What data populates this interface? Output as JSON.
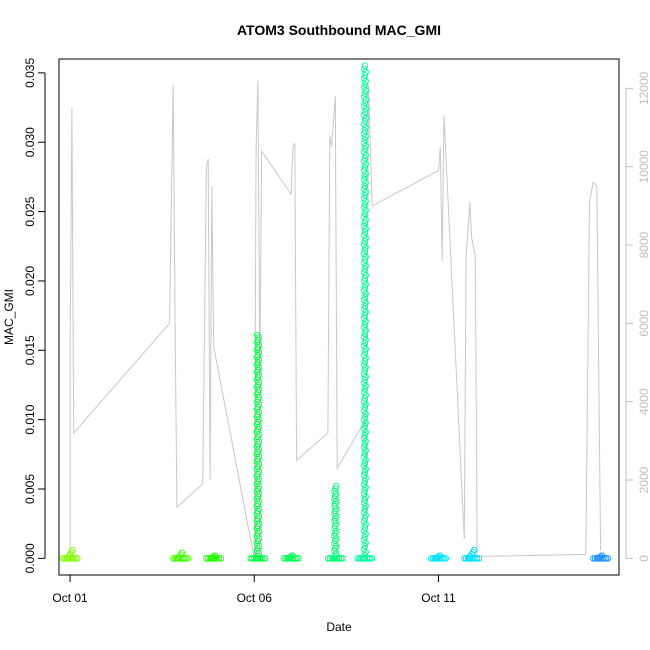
{
  "chart_data": {
    "type": "scatter",
    "title": "ATOM3 Southbound MAC_GMI",
    "xlabel": "Date",
    "ylabel": "MAC_GMI",
    "x_ticks": [
      "Oct 01",
      "Oct 06",
      "Oct 11"
    ],
    "x_tick_days": [
      1,
      6,
      11
    ],
    "xlim": [
      0.7,
      15.9
    ],
    "ylim": [
      -0.0012,
      0.036
    ],
    "y_ticks": [
      0.0,
      0.005,
      0.01,
      0.015,
      0.02,
      0.025,
      0.03,
      0.035
    ],
    "y_tick_labels": [
      "0.000",
      "0.005",
      "0.010",
      "0.015",
      "0.020",
      "0.025",
      "0.030",
      "0.035"
    ],
    "y2_ticks": [
      0,
      2000,
      4000,
      6000,
      8000,
      10000,
      12000
    ],
    "y2_lim": [
      -425,
      12750
    ],
    "points_series": [
      {
        "day": 1.0,
        "ymin": 0.0,
        "ymax": 0.0006,
        "color": "#7fff00",
        "dense": true
      },
      {
        "day": 4.0,
        "ymin": 0.0,
        "ymax": 0.0004,
        "color": "#44ff00",
        "dense": true
      },
      {
        "day": 4.9,
        "ymin": 0.0,
        "ymax": 0.0002,
        "color": "#22ff00",
        "dense": true
      },
      {
        "day": 6.1,
        "ymin": 0.0,
        "ymax": 0.0161,
        "color": "#00ff44",
        "dense": false
      },
      {
        "day": 7.0,
        "ymin": 0.0,
        "ymax": 0.0002,
        "color": "#00ff55",
        "dense": true
      },
      {
        "day": 8.2,
        "ymin": 0.0,
        "ymax": 0.0052,
        "color": "#00ff77",
        "dense": false
      },
      {
        "day": 9.0,
        "ymin": 0.0,
        "ymax": 0.0355,
        "color": "#00ff99",
        "dense": false
      },
      {
        "day": 11.0,
        "ymin": 0.0,
        "ymax": 0.0002,
        "color": "#00e5ff",
        "dense": true
      },
      {
        "day": 11.9,
        "ymin": 0.0,
        "ymax": 0.0006,
        "color": "#00ddff",
        "dense": true
      },
      {
        "day": 15.4,
        "ymin": 0.0,
        "ymax": 0.0002,
        "color": "#1e90ff",
        "dense": true
      }
    ],
    "line_series": {
      "name": "secondary axis trace",
      "color": "#c8c8c8",
      "points": [
        [
          1.0,
          0
        ],
        [
          1.0,
          5200
        ],
        [
          1.05,
          11500
        ],
        [
          1.1,
          3200
        ],
        [
          3.7,
          6000
        ],
        [
          3.8,
          12100
        ],
        [
          3.85,
          6000
        ],
        [
          3.9,
          1300
        ],
        [
          4.6,
          1900
        ],
        [
          4.7,
          10000
        ],
        [
          4.75,
          10200
        ],
        [
          4.8,
          2000
        ],
        [
          4.85,
          9500
        ],
        [
          4.9,
          5400
        ],
        [
          6.0,
          0
        ],
        [
          6.05,
          10500
        ],
        [
          6.1,
          12200
        ],
        [
          6.15,
          4700
        ],
        [
          6.2,
          10400
        ],
        [
          7.0,
          9300
        ],
        [
          7.05,
          10500
        ],
        [
          7.1,
          10600
        ],
        [
          7.15,
          2500
        ],
        [
          8.0,
          3200
        ],
        [
          8.05,
          10800
        ],
        [
          8.1,
          10500
        ],
        [
          8.2,
          11800
        ],
        [
          8.25,
          2300
        ],
        [
          9.0,
          3500
        ],
        [
          9.05,
          1100
        ],
        [
          9.1,
          12100
        ],
        [
          9.2,
          9000
        ],
        [
          11.0,
          9900
        ],
        [
          11.05,
          10500
        ],
        [
          11.1,
          7600
        ],
        [
          11.15,
          11300
        ],
        [
          11.7,
          500
        ],
        [
          11.75,
          7800
        ],
        [
          11.8,
          8300
        ],
        [
          11.85,
          9100
        ],
        [
          11.9,
          8200
        ],
        [
          12.0,
          7700
        ],
        [
          12.05,
          50
        ],
        [
          15.0,
          100
        ],
        [
          15.1,
          9100
        ],
        [
          15.2,
          9600
        ],
        [
          15.3,
          9500
        ],
        [
          15.35,
          4800
        ],
        [
          15.4,
          200
        ]
      ]
    }
  }
}
